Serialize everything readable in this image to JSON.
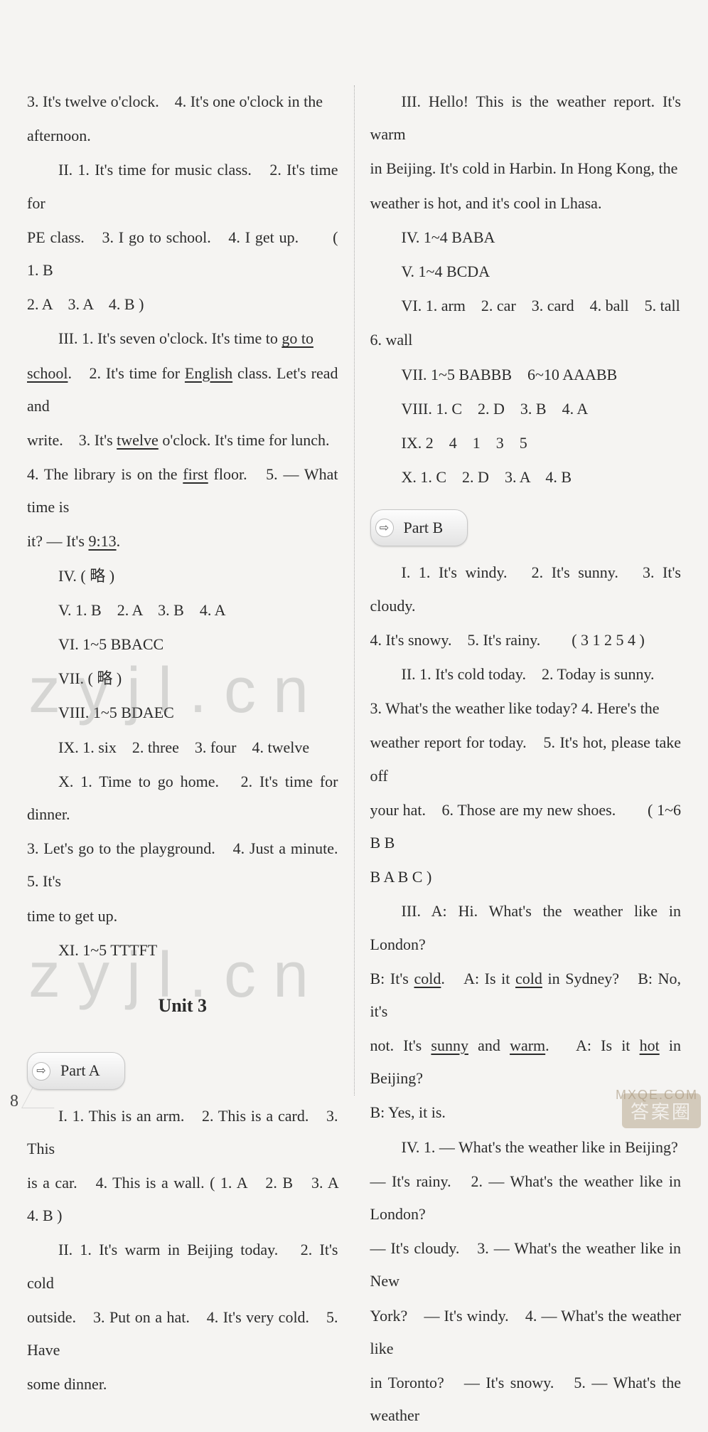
{
  "page_number": "8",
  "watermark_text": "zyjl.cn",
  "badge_text": "答案圈",
  "badge_url": "MXQE.COM",
  "left": {
    "p1a": "3. It's twelve o'clock.　4. It's one o'clock in the",
    "p1b": "afternoon.",
    "p2a": "II. 1. It's time for music class.　2. It's time for",
    "p2b": "PE class.　3. I go to school.　4. I get up.　　( 1. B",
    "p2c": "2. A　3. A　4. B )",
    "p3a": "III. 1. It's seven o'clock. It's time to ",
    "p3a_u": "go to",
    "p3b_u": "school",
    "p3b": ".　2. It's time for ",
    "p3b_u2": "English",
    "p3b2": " class. Let's read and",
    "p3c": "write.　3. It's ",
    "p3c_u": "twelve",
    "p3c2": " o'clock. It's time for lunch.",
    "p3d": "4. The library is on the ",
    "p3d_u": "first",
    "p3d2": " floor.　5. — What time is",
    "p3e": "it? — It's ",
    "p3e_u": "9:13",
    "p3e2": ".",
    "p4": "IV.  ( 略 )",
    "p5": "V. 1. B　2. A　3. B　4. A",
    "p6": "VI. 1~5 BBACC",
    "p7": "VII. ( 略 )",
    "p8": "VIII. 1~5 BDAEC",
    "p9": "IX. 1. six　2. three　3. four　4. twelve",
    "p10a": "X. 1. Time to go home.　2. It's time for dinner.",
    "p10b": "3. Let's go to the playground.　4. Just a minute.　5. It's",
    "p10c": "time to get up.",
    "p11": "XI. 1~5 TTTFT",
    "unit": "Unit 3",
    "partA": "Part A",
    "pa1a": "I. 1. This is an arm.　2. This is a card.　3. This",
    "pa1b": "is a car.　4. This is a wall. ( 1. A　2. B　3. A　4. B )",
    "pa2a": "II. 1. It's warm in Beijing today.　2. It's cold",
    "pa2b": "outside.　3. Put on a hat.　4. It's very cold.　5. Have",
    "pa2c": "some dinner."
  },
  "right": {
    "p1a": "III. Hello! This is the weather report. It's warm",
    "p1b": "in Beijing. It's cold in Harbin. In Hong Kong, the",
    "p1c": "weather is hot, and it's cool in Lhasa.",
    "p2": "IV. 1~4 BABA",
    "p3": "V. 1~4 BCDA",
    "p4a": "VI. 1. arm　2. car　3. card　4. ball　5. tall",
    "p4b": "6. wall",
    "p5": "VII. 1~5 BABBB　6~10 AAABB",
    "p6": "VIII. 1. C　2. D　3. B　4. A",
    "p7": "IX. 2　4　1　3　5",
    "p8": "X. 1. C　2. D　3. A　4. B",
    "partB": "Part B",
    "pb1a": "I. 1. It's windy.　2. It's sunny.　3. It's cloudy.",
    "pb1b": "4. It's snowy.　5. It's rainy.　　( 3 1 2 5 4 )",
    "pb2a": "II. 1. It's cold today.　2. Today is sunny.",
    "pb2b": "3. What's the weather like today? 4. Here's the",
    "pb2c": "weather report for today.　5. It's hot, please take off",
    "pb2d": "your hat.　6. Those are my new shoes.　　( 1~6 B B",
    "pb2e": "B A B C )",
    "pb3a": "III. A: Hi. What's the weather like in London?",
    "pb3b1": "B: It's ",
    "pb3b1_u": "cold",
    "pb3b2": ".　A: Is it ",
    "pb3b2_u": "cold",
    "pb3b3": " in Sydney?　B: No, it's",
    "pb3c1": "not. It's ",
    "pb3c1_u": "sunny",
    "pb3c2": " and ",
    "pb3c2_u": "warm",
    "pb3c3": ".　A: Is it ",
    "pb3c3_u": "hot",
    "pb3c4": " in Beijing?",
    "pb3d": "B: Yes, it is.",
    "pb4a": "IV. 1. — What's the weather like in Beijing?",
    "pb4b": "— It's rainy.　2. — What's the weather like in London?",
    "pb4c": "— It's cloudy.　3. — What's the weather like in New",
    "pb4d": "York?　— It's windy.　4. — What's the weather like",
    "pb4e": "in Toronto?　— It's snowy.　5. — What's the weather"
  }
}
